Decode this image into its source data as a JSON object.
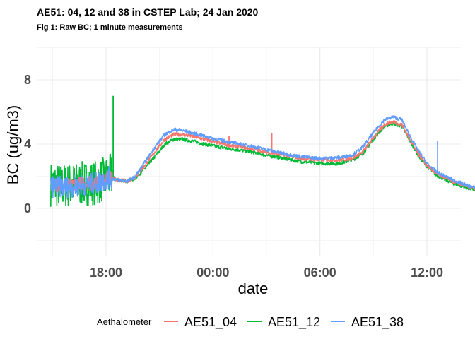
{
  "chart_data": {
    "type": "line",
    "title": "AE51: 04, 12 and 38 in CSTEP Lab; 24 Jan 2020",
    "subtitle": "Fig 1: Raw BC; 1 minute measurements",
    "xlabel": "date",
    "ylabel": "BC (ug/m3)",
    "x_unit": "hours (clock time, 24 Jan 2020 evening to 25 Jan 2020)",
    "xlim_hours": [
      14.6,
      37.0
    ],
    "ylim": [
      -2.5,
      10.2
    ],
    "x_ticks": [
      {
        "hour": 18,
        "label": "18:00"
      },
      {
        "hour": 24,
        "label": "00:00"
      },
      {
        "hour": 30,
        "label": "06:00"
      },
      {
        "hour": 36,
        "label": "12:00"
      }
    ],
    "y_ticks": [
      0,
      4,
      8
    ],
    "grid": true,
    "legend": {
      "title": "Aethalometer",
      "position": "bottom"
    },
    "series": [
      {
        "name": "AE51_04",
        "color": "#F8766D",
        "points": [
          [
            14.9,
            1.5
          ],
          [
            15.5,
            1.4
          ],
          [
            16.5,
            1.5
          ],
          [
            17.5,
            1.6
          ],
          [
            18.2,
            1.9
          ],
          [
            18.7,
            1.75
          ],
          [
            19.2,
            1.7
          ],
          [
            19.6,
            1.9
          ],
          [
            20.2,
            2.7
          ],
          [
            20.8,
            3.6
          ],
          [
            21.3,
            4.3
          ],
          [
            21.8,
            4.6
          ],
          [
            22.3,
            4.6
          ],
          [
            22.8,
            4.5
          ],
          [
            23.5,
            4.3
          ],
          [
            24.2,
            4.1
          ],
          [
            25.0,
            3.9
          ],
          [
            26.0,
            3.75
          ],
          [
            27.0,
            3.5
          ],
          [
            28.0,
            3.3
          ],
          [
            29.0,
            3.1
          ],
          [
            30.0,
            3.0
          ],
          [
            31.0,
            3.0
          ],
          [
            31.8,
            3.1
          ],
          [
            32.4,
            3.5
          ],
          [
            33.0,
            4.4
          ],
          [
            33.6,
            5.2
          ],
          [
            34.1,
            5.4
          ],
          [
            34.6,
            5.2
          ],
          [
            35.0,
            4.4
          ],
          [
            35.5,
            3.4
          ],
          [
            36.0,
            2.7
          ],
          [
            36.5,
            2.2
          ],
          [
            37.0,
            1.9
          ],
          [
            37.6,
            1.6
          ],
          [
            38.2,
            1.4
          ],
          [
            38.8,
            1.2
          ]
        ],
        "spikes": [
          [
            27.3,
            4.7
          ],
          [
            24.9,
            4.5
          ]
        ]
      },
      {
        "name": "AE51_12",
        "color": "#00BA38",
        "points": [
          [
            14.9,
            1.5
          ],
          [
            15.5,
            1.4
          ],
          [
            16.5,
            1.5
          ],
          [
            17.5,
            1.6
          ],
          [
            18.2,
            2.0
          ],
          [
            18.7,
            1.75
          ],
          [
            19.2,
            1.7
          ],
          [
            19.6,
            1.85
          ],
          [
            20.2,
            2.5
          ],
          [
            20.8,
            3.3
          ],
          [
            21.3,
            4.0
          ],
          [
            21.8,
            4.3
          ],
          [
            22.3,
            4.3
          ],
          [
            22.8,
            4.2
          ],
          [
            23.5,
            4.0
          ],
          [
            24.2,
            3.85
          ],
          [
            25.0,
            3.7
          ],
          [
            26.0,
            3.55
          ],
          [
            27.0,
            3.3
          ],
          [
            28.0,
            3.1
          ],
          [
            29.0,
            2.9
          ],
          [
            30.0,
            2.8
          ],
          [
            31.0,
            2.8
          ],
          [
            31.8,
            3.0
          ],
          [
            32.4,
            3.4
          ],
          [
            33.0,
            4.3
          ],
          [
            33.6,
            5.1
          ],
          [
            34.1,
            5.3
          ],
          [
            34.6,
            5.1
          ],
          [
            35.0,
            4.3
          ],
          [
            35.5,
            3.3
          ],
          [
            36.0,
            2.6
          ],
          [
            36.5,
            2.1
          ],
          [
            37.0,
            1.8
          ],
          [
            37.6,
            1.5
          ],
          [
            38.2,
            1.3
          ],
          [
            38.8,
            1.1
          ]
        ],
        "noise_range": [
          [
            14.9,
            -0.6,
            3.0
          ],
          [
            17.7,
            0.3,
            3.2
          ]
        ],
        "spikes": [
          [
            18.4,
            7.0
          ]
        ]
      },
      {
        "name": "AE51_38",
        "color": "#619CFF",
        "points": [
          [
            14.9,
            1.4
          ],
          [
            15.5,
            1.3
          ],
          [
            16.5,
            1.4
          ],
          [
            17.5,
            1.6
          ],
          [
            18.2,
            1.9
          ],
          [
            18.7,
            1.75
          ],
          [
            19.2,
            1.7
          ],
          [
            19.6,
            1.95
          ],
          [
            20.2,
            2.9
          ],
          [
            20.8,
            3.9
          ],
          [
            21.3,
            4.6
          ],
          [
            21.8,
            4.9
          ],
          [
            22.3,
            4.85
          ],
          [
            22.8,
            4.7
          ],
          [
            23.5,
            4.5
          ],
          [
            24.2,
            4.3
          ],
          [
            25.0,
            4.1
          ],
          [
            26.0,
            3.9
          ],
          [
            27.0,
            3.65
          ],
          [
            28.0,
            3.4
          ],
          [
            29.0,
            3.2
          ],
          [
            30.0,
            3.1
          ],
          [
            31.0,
            3.15
          ],
          [
            31.8,
            3.3
          ],
          [
            32.4,
            3.8
          ],
          [
            33.0,
            4.7
          ],
          [
            33.6,
            5.5
          ],
          [
            34.1,
            5.7
          ],
          [
            34.6,
            5.5
          ],
          [
            35.0,
            4.6
          ],
          [
            35.5,
            3.6
          ],
          [
            36.0,
            2.8
          ],
          [
            36.5,
            2.3
          ],
          [
            37.0,
            2.0
          ],
          [
            37.6,
            1.7
          ],
          [
            38.2,
            1.45
          ],
          [
            38.8,
            1.25
          ]
        ],
        "spikes": [
          [
            36.6,
            4.2
          ]
        ]
      }
    ]
  }
}
